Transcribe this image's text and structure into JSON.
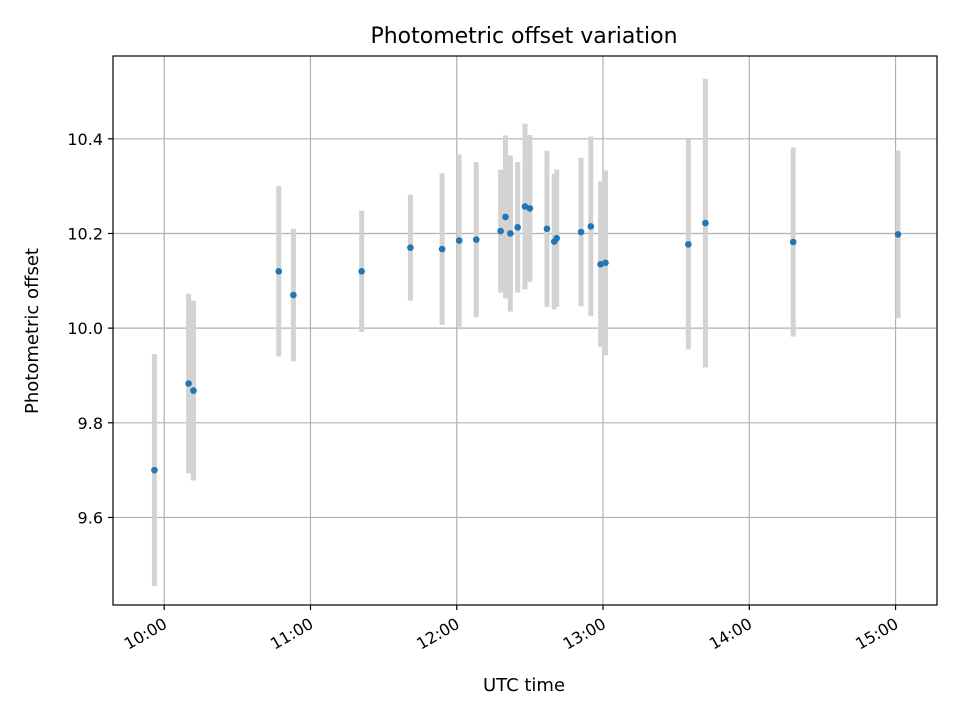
{
  "chart_data": {
    "type": "scatter",
    "title": "Photometric offset variation",
    "xlabel": "UTC time",
    "ylabel": "Photometric offset",
    "x_axis": {
      "kind": "time",
      "range": [
        "09:39",
        "15:17"
      ],
      "ticks": [
        "10:00",
        "11:00",
        "12:00",
        "13:00",
        "14:00",
        "15:00"
      ]
    },
    "y_axis": {
      "range": [
        9.415,
        10.575
      ],
      "ticks": [
        9.6,
        9.8,
        10.0,
        10.2,
        10.4
      ],
      "tick_labels": [
        "9.6",
        "9.8",
        "10.0",
        "10.2",
        "10.4"
      ]
    },
    "grid": true,
    "colors": {
      "points": "#1f77b4",
      "errorbars": "#d3d3d3",
      "grid": "#b0b0b0"
    },
    "points": [
      {
        "t": "09:56",
        "y": 9.7,
        "err": 0.245
      },
      {
        "t": "10:10",
        "y": 9.883,
        "err": 0.19
      },
      {
        "t": "10:12",
        "y": 9.868,
        "err": 0.19
      },
      {
        "t": "10:47",
        "y": 10.12,
        "err": 0.18
      },
      {
        "t": "10:53",
        "y": 10.07,
        "err": 0.14
      },
      {
        "t": "11:21",
        "y": 10.12,
        "err": 0.128
      },
      {
        "t": "11:41",
        "y": 10.17,
        "err": 0.112
      },
      {
        "t": "11:54",
        "y": 10.167,
        "err": 0.16
      },
      {
        "t": "12:01",
        "y": 10.185,
        "err": 0.182
      },
      {
        "t": "12:08",
        "y": 10.187,
        "err": 0.164
      },
      {
        "t": "12:18",
        "y": 10.205,
        "err": 0.13
      },
      {
        "t": "12:20",
        "y": 10.235,
        "err": 0.172
      },
      {
        "t": "12:22",
        "y": 10.2,
        "err": 0.165
      },
      {
        "t": "12:25",
        "y": 10.213,
        "err": 0.138
      },
      {
        "t": "12:28",
        "y": 10.257,
        "err": 0.175
      },
      {
        "t": "12:30",
        "y": 10.253,
        "err": 0.155
      },
      {
        "t": "12:37",
        "y": 10.21,
        "err": 0.165
      },
      {
        "t": "12:40",
        "y": 10.183,
        "err": 0.143
      },
      {
        "t": "12:41",
        "y": 10.19,
        "err": 0.145
      },
      {
        "t": "12:51",
        "y": 10.203,
        "err": 0.157
      },
      {
        "t": "12:55",
        "y": 10.215,
        "err": 0.19
      },
      {
        "t": "12:59",
        "y": 10.135,
        "err": 0.175
      },
      {
        "t": "13:01",
        "y": 10.138,
        "err": 0.195
      },
      {
        "t": "13:35",
        "y": 10.177,
        "err": 0.222
      },
      {
        "t": "13:42",
        "y": 10.222,
        "err": 0.305
      },
      {
        "t": "14:18",
        "y": 10.182,
        "err": 0.2
      },
      {
        "t": "15:01",
        "y": 10.198,
        "err": 0.177
      }
    ]
  }
}
